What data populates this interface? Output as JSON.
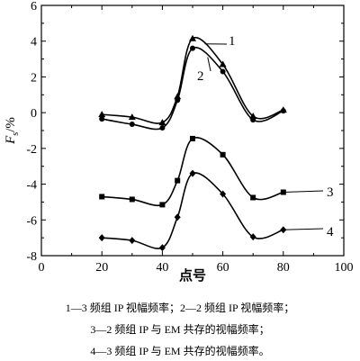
{
  "chart_data": {
    "type": "line",
    "xlabel": "点号",
    "ylabel": "F",
    "ylabel_sub": "s",
    "ylabel_unit": "/%",
    "xlim": [
      0,
      100
    ],
    "ylim": [
      -8,
      6
    ],
    "xticks": [
      0,
      20,
      40,
      60,
      80,
      100
    ],
    "yticks": [
      -8,
      -6,
      -4,
      -2,
      0,
      2,
      4,
      6
    ],
    "grid": false,
    "series": [
      {
        "name": "1",
        "marker": "triangle",
        "x": [
          20,
          30,
          40,
          45,
          50,
          60,
          70,
          80
        ],
        "y": [
          -0.1,
          -0.25,
          -0.55,
          0.9,
          4.15,
          2.7,
          -0.2,
          0.15
        ]
      },
      {
        "name": "2",
        "marker": "circle",
        "x": [
          20,
          30,
          40,
          45,
          50,
          60,
          70,
          80
        ],
        "y": [
          -0.35,
          -0.65,
          -0.85,
          0.7,
          3.6,
          2.3,
          -0.4,
          0.1
        ]
      },
      {
        "name": "3",
        "marker": "square",
        "x": [
          20,
          30,
          40,
          45,
          50,
          60,
          70,
          80
        ],
        "y": [
          -4.7,
          -4.85,
          -5.15,
          -3.8,
          -1.45,
          -2.35,
          -4.75,
          -4.45
        ]
      },
      {
        "name": "4",
        "marker": "diamond",
        "x": [
          20,
          30,
          40,
          45,
          50,
          60,
          70,
          80
        ],
        "y": [
          -7.0,
          -7.15,
          -7.55,
          -5.85,
          -3.4,
          -4.55,
          -6.95,
          -6.55
        ]
      }
    ],
    "captions": [
      "1—3 频组 IP 视幅频率；2—2 频组 IP 视幅频率；",
      "3—2 频组 IP 与 EM 共存的视幅频率；",
      "4—3 频组 IP 与 EM 共存的视幅频率。"
    ]
  }
}
